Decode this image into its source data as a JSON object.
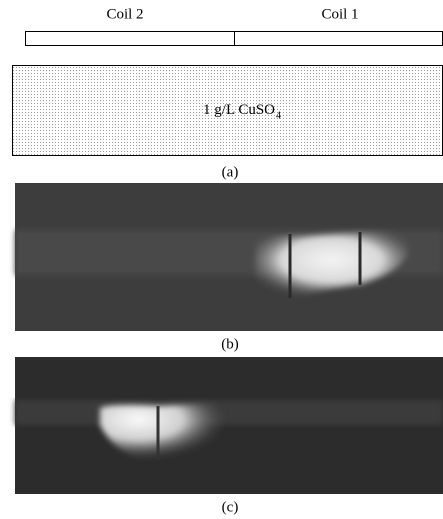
{
  "labels": {
    "coil2": "Coil 2",
    "coil1": "Coil 1"
  },
  "phantom": {
    "text": "1 g/L CuSO",
    "subscript": "4"
  },
  "panels": [
    "(a)",
    "(b)",
    "(c)"
  ]
}
